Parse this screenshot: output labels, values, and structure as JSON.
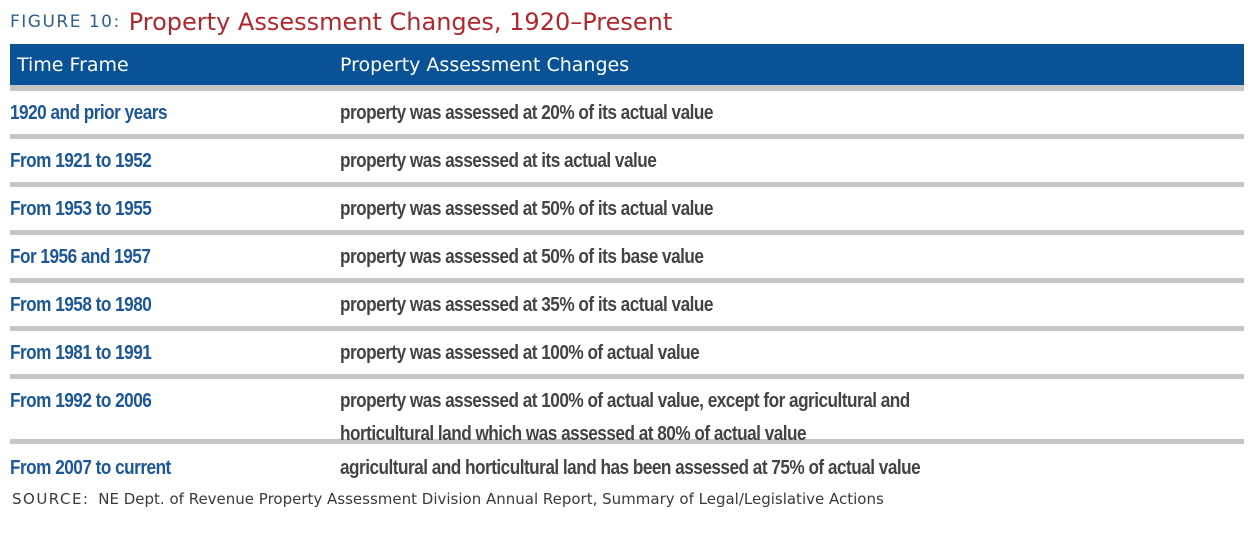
{
  "figure": {
    "label": "FIGURE 10:",
    "title": "Property Assessment Changes, 1920–Present"
  },
  "table": {
    "headers": [
      "Time Frame",
      "Property Assessment Changes"
    ],
    "rows": [
      {
        "time": "1920 and prior years",
        "lines": [
          "property was assessed at 20% of its actual value"
        ]
      },
      {
        "time": "From 1921 to 1952",
        "lines": [
          "property was assessed at its actual value"
        ]
      },
      {
        "time": "From 1953 to 1955",
        "lines": [
          "property was assessed at 50% of its actual value"
        ]
      },
      {
        "time": "For 1956 and 1957",
        "lines": [
          "property was assessed at 50% of its base value"
        ]
      },
      {
        "time": "From 1958 to 1980",
        "lines": [
          "property was assessed at 35% of its actual value"
        ]
      },
      {
        "time": "From 1981 to 1991",
        "lines": [
          "property was assessed at 100% of actual value"
        ]
      },
      {
        "time": "From 1992 to 2006",
        "lines": [
          "property was assessed at 100% of actual value, except for agricultural and",
          "horticultural land which was assessed at 80% of actual value"
        ]
      },
      {
        "time": "From 2007 to current",
        "lines": [
          "agricultural and horticultural land has been assessed at 75% of actual value"
        ]
      }
    ]
  },
  "source": {
    "label": "SOURCE:",
    "text": "NE Dept. of Revenue Property Assessment Division Annual Report, Summary of Legal/Legislative Actions"
  },
  "colors": {
    "header_bg": "#0a5296",
    "title_red": "#b0282e",
    "time_blue": "#1d5796",
    "divider_gray": "#c6c6c6"
  }
}
